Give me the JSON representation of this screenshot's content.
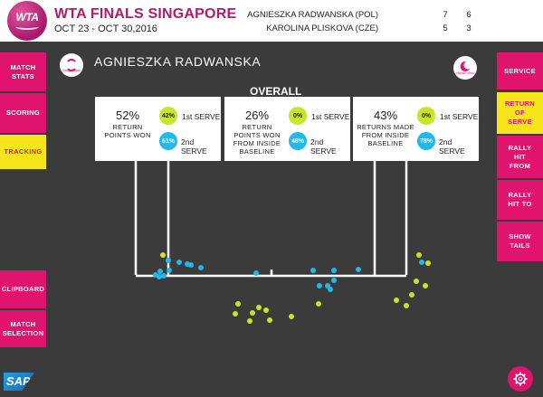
{
  "header": {
    "logo_text": "WTA",
    "title": "WTA FINALS SINGAPORE",
    "dates": "OCT 23 - OCT 30,2016",
    "players": [
      {
        "name": "AGNIESZKA RADWANSKA (POL)",
        "set1": "7",
        "set2": "6"
      },
      {
        "name": "KAROLINA PLISKOVA (CZE)",
        "set1": "5",
        "set2": "3"
      }
    ]
  },
  "left_nav": [
    {
      "label": "MATCH\nSTATS",
      "state": "default"
    },
    {
      "label": "SCORING",
      "state": "default"
    },
    {
      "label": "TRACKING",
      "state": "active"
    },
    {
      "label": "CLIPBOARD",
      "state": "default"
    },
    {
      "label": "MATCH\nSELECTION",
      "state": "default"
    }
  ],
  "right_nav": [
    {
      "label": "SERVICE",
      "state": "default"
    },
    {
      "label": "RETURN\nOF\nSERVE",
      "state": "active"
    },
    {
      "label": "RALLY\nHIT\nFROM",
      "state": "default"
    },
    {
      "label": "RALLY\nHIT TO",
      "state": "default"
    },
    {
      "label": "SHOW\nTAILS",
      "state": "default"
    }
  ],
  "main": {
    "player_name": "AGNIESZKA RADWANSKA",
    "swap_player_caption": "Swap Player",
    "hidden_view_caption": "Hidden View",
    "section_title": "OVERALL",
    "stats": [
      {
        "pct": "52%",
        "desc": "RETURN\nPOINTS WON",
        "first_serve_pct": "42%",
        "second_serve_pct": "61%",
        "first_label": "1st SERVE",
        "second_label": "2nd SERVE"
      },
      {
        "pct": "26%",
        "desc": "RETURN\nPOINTS WON\nFROM INSIDE\nBASELINE",
        "first_serve_pct": "0%",
        "second_serve_pct": "48%",
        "first_label": "1st SERVE",
        "second_label": "2nd SERVE"
      },
      {
        "pct": "43%",
        "desc": "RETURNS MADE\nFROM INSIDE\nBASELINE",
        "first_serve_pct": "0%",
        "second_serve_pct": "78%",
        "first_label": "1st SERVE",
        "second_label": "2nd SERVE"
      }
    ]
  },
  "colors": {
    "accent_pink": "#e0136f",
    "active_yellow": "#f7e51c",
    "first_serve": "#c8e627",
    "second_serve": "#23b7ea",
    "background": "#3b3b3b"
  },
  "icons": {
    "gear": "gear-icon",
    "sap": "sap-logo",
    "swap": "swap-player-icon",
    "hidden": "hidden-view-icon"
  }
}
